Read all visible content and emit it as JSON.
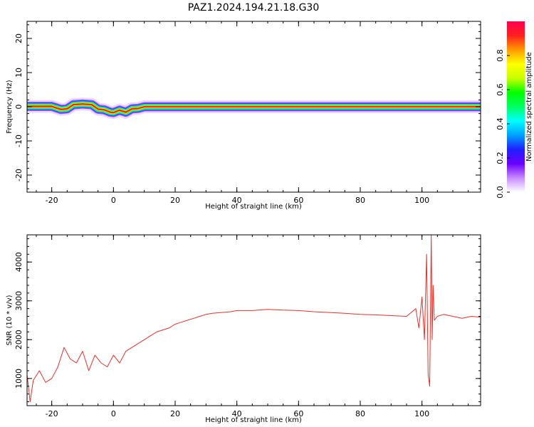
{
  "figure": {
    "title": "PAZ1.2024.194.21.18.G30"
  },
  "chart_data": [
    {
      "type": "heatmap",
      "xlabel": "Height of straight line (km)",
      "ylabel": "Frequency (Hz)",
      "xlim": [
        -28,
        119
      ],
      "ylim": [
        -25,
        25
      ],
      "xticks": [
        -20,
        0,
        20,
        40,
        60,
        80,
        100
      ],
      "xtick_labels": [
        "-20",
        "0",
        "20",
        "40",
        "60",
        "80",
        "100"
      ],
      "yticks": [
        -20,
        -10,
        0,
        10,
        20
      ],
      "ytick_labels": [
        "-20",
        "-10",
        "0",
        "10",
        "20"
      ],
      "grid": false,
      "ridge": {
        "x": [
          -28,
          -20,
          -17,
          -15,
          -13,
          -10,
          -7,
          -5,
          -3,
          -1,
          0,
          2,
          4,
          6,
          8,
          10,
          20,
          40,
          60,
          80,
          100,
          102,
          104,
          119
        ],
        "y": [
          0.1,
          0.1,
          -0.8,
          -0.6,
          0.6,
          0.8,
          0.6,
          -0.7,
          -0.9,
          -1.6,
          -1.7,
          -1.0,
          -1.6,
          -0.6,
          -0.5,
          0.0,
          0.0,
          0.0,
          0.0,
          0.0,
          0.0,
          0.0,
          0.0,
          0.0
        ],
        "amplitude_peak": 0.95
      },
      "colorbar": {
        "label": "Normalized spectral amplitude",
        "range": [
          0,
          1
        ],
        "ticks": [
          0.0,
          0.2,
          0.4,
          0.6,
          0.8
        ],
        "tick_labels": [
          "0.0",
          "0.2",
          "0.4",
          "0.6",
          "0.8"
        ],
        "colormap": [
          "#ffffff",
          "#c88cff",
          "#6a00ff",
          "#1e20ff",
          "#00a0ff",
          "#00ffff",
          "#00ff60",
          "#00ff00",
          "#c8ff00",
          "#ffff00",
          "#ff9a00",
          "#ff2020",
          "#ff0050"
        ]
      }
    },
    {
      "type": "line",
      "xlabel": "Height of straight line (km)",
      "ylabel": "SNR (10 * v/v)",
      "xlim": [
        -28,
        119
      ],
      "ylim": [
        300,
        4700
      ],
      "xticks": [
        -20,
        0,
        20,
        40,
        60,
        80,
        100
      ],
      "xtick_labels": [
        "-20",
        "0",
        "20",
        "40",
        "60",
        "80",
        "100"
      ],
      "yticks": [
        1000,
        2000,
        3000,
        4000
      ],
      "ytick_labels": [
        "1000",
        "2000",
        "3000",
        "4000"
      ],
      "grid": false,
      "color": "#e8302a",
      "series": [
        {
          "x": [
            -28,
            -27,
            -26,
            -24,
            -22,
            -20,
            -18,
            -16,
            -14,
            -12,
            -10,
            -8,
            -6,
            -4,
            -2,
            0,
            2,
            4,
            6,
            8,
            10,
            12,
            14,
            16,
            18,
            20,
            22,
            24,
            26,
            28,
            30,
            32,
            35,
            38,
            40,
            45,
            50,
            55,
            60,
            65,
            70,
            75,
            80,
            85,
            90,
            95,
            98,
            99,
            100,
            100.8,
            101.5,
            102,
            102.5,
            103,
            103.3,
            103.6,
            104,
            105,
            107,
            110,
            113,
            116,
            119
          ],
          "y": [
            1100,
            400,
            950,
            1200,
            900,
            1000,
            1300,
            1800,
            1500,
            1400,
            1700,
            1200,
            1600,
            1400,
            1300,
            1600,
            1400,
            1700,
            1800,
            1900,
            2000,
            2100,
            2200,
            2250,
            2300,
            2400,
            2450,
            2500,
            2550,
            2600,
            2650,
            2680,
            2700,
            2720,
            2750,
            2750,
            2780,
            2760,
            2750,
            2720,
            2700,
            2680,
            2650,
            2640,
            2620,
            2600,
            2800,
            2300,
            3100,
            2000,
            4200,
            1100,
            800,
            4700,
            2000,
            3400,
            2500,
            2600,
            2650,
            2600,
            2550,
            2600,
            2580
          ]
        }
      ]
    }
  ]
}
